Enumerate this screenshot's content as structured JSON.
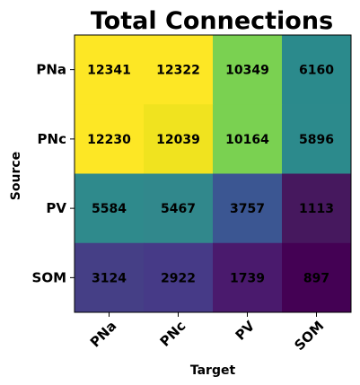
{
  "chart_data": {
    "type": "heatmap",
    "title": "Total Connections",
    "xlabel": "Target",
    "ylabel": "Source",
    "x_categories": [
      "PNa",
      "PNc",
      "PV",
      "SOM"
    ],
    "y_categories": [
      "PNa",
      "PNc",
      "PV",
      "SOM"
    ],
    "values": [
      [
        12341,
        12322,
        10349,
        6160
      ],
      [
        12230,
        12039,
        10164,
        5896
      ],
      [
        5584,
        5467,
        3757,
        1113
      ],
      [
        3124,
        2922,
        1739,
        897
      ]
    ],
    "colormap": "viridis",
    "vmin": 897,
    "vmax": 12341,
    "cell_colors": [
      [
        "#fde725",
        "#fde725",
        "#7ad151",
        "#2b8a8c"
      ],
      [
        "#fde725",
        "#f0e31f",
        "#7ad151",
        "#2c8a8c"
      ],
      [
        "#2f8a8c",
        "#31888c",
        "#3b5692",
        "#46185e"
      ],
      [
        "#453f86",
        "#463a87",
        "#4a1a6d",
        "#440154"
      ]
    ],
    "grid": false
  }
}
